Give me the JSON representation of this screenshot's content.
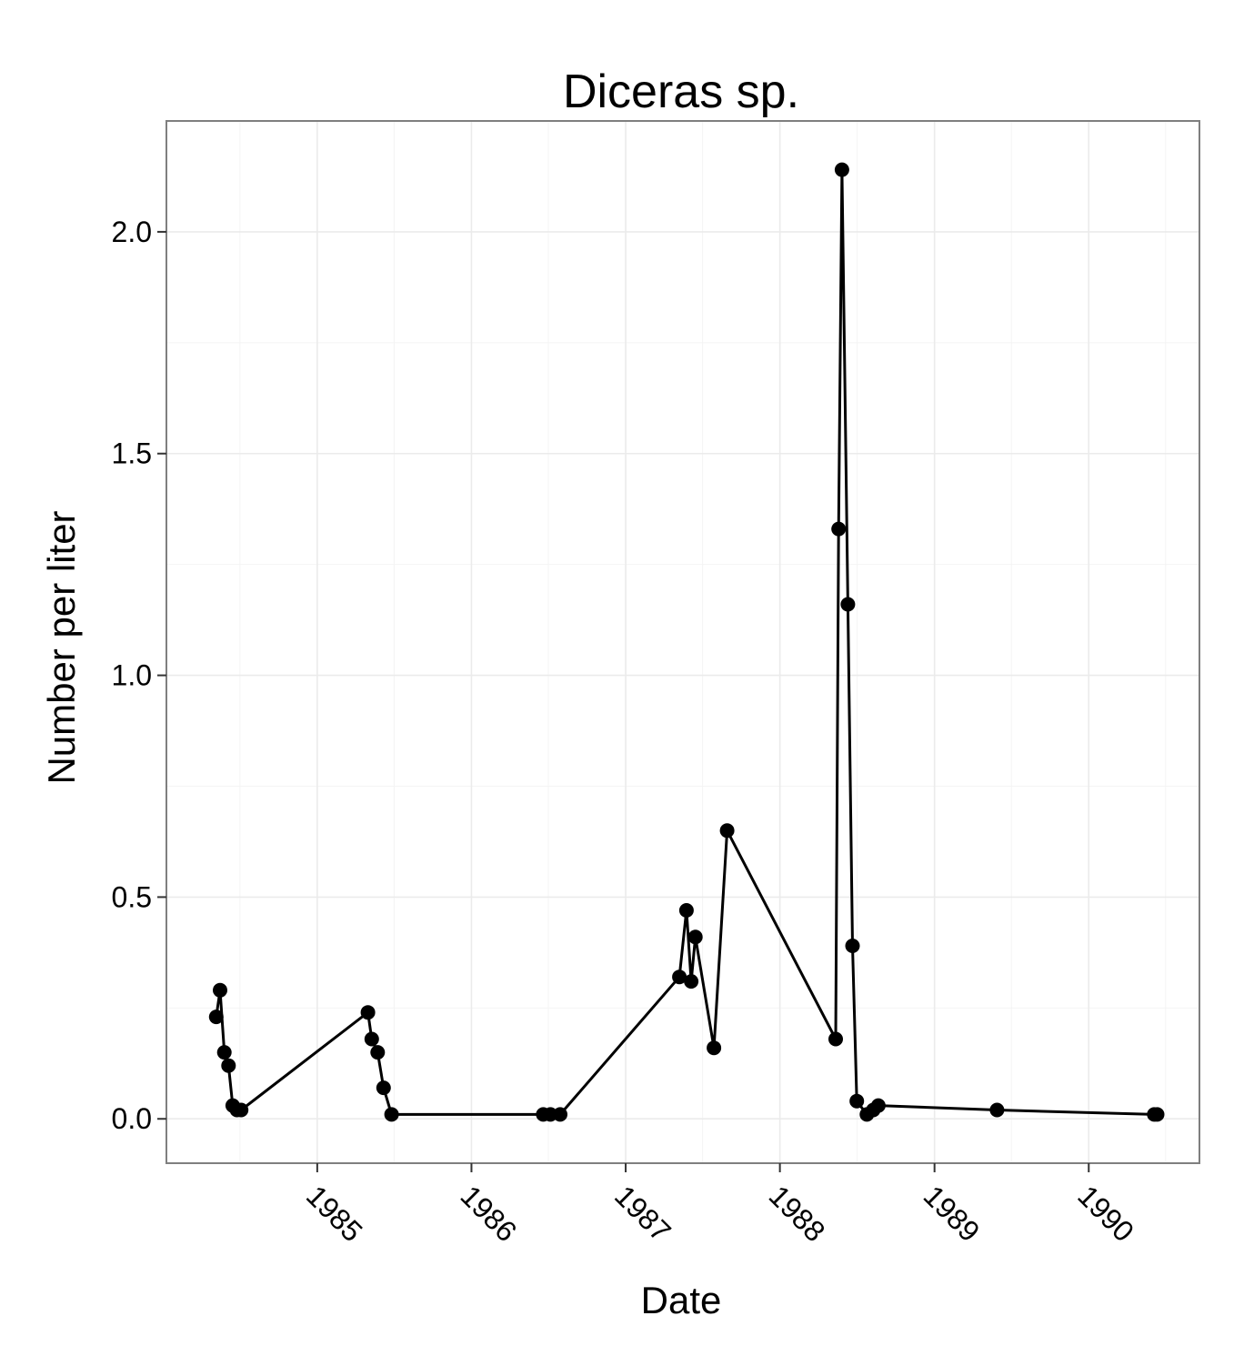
{
  "chart_data": {
    "type": "line",
    "title": "Diceras sp.",
    "xlabel": "Date",
    "ylabel": "Number per liter",
    "x_axis_type": "date",
    "xlim": [
      "1984-01-10",
      "1990-09-20"
    ],
    "ylim": [
      -0.1,
      2.25
    ],
    "x_ticks": [
      "1985-01-01",
      "1986-01-01",
      "1987-01-01",
      "1988-01-01",
      "1989-01-01",
      "1990-01-01"
    ],
    "x_tick_labels": [
      "1985",
      "1986",
      "1987",
      "1988",
      "1989",
      "1990"
    ],
    "y_ticks": [
      0.0,
      0.5,
      1.0,
      1.5,
      2.0
    ],
    "y_tick_labels": [
      "0.0",
      "0.5",
      "1.0",
      "1.5",
      "2.0"
    ],
    "tick_label_rotation_deg": 45,
    "grid": true,
    "legend": "none",
    "series": [
      {
        "color": "#000000",
        "marker": "circle",
        "x": [
          "1984-05-07",
          "1984-05-16",
          "1984-05-26",
          "1984-06-05",
          "1984-06-15",
          "1984-06-25",
          "1984-07-05",
          "1985-05-01",
          "1985-05-10",
          "1985-05-24",
          "1985-06-07",
          "1985-06-26",
          "1986-06-20",
          "1986-07-07",
          "1986-07-30",
          "1987-05-08",
          "1987-05-25",
          "1987-06-05",
          "1987-06-15",
          "1987-07-29",
          "1987-08-29",
          "1988-05-12",
          "1988-05-19",
          "1988-05-27",
          "1988-06-10",
          "1988-06-21",
          "1988-07-01",
          "1988-07-25",
          "1988-08-09",
          "1988-08-21",
          "1989-05-29",
          "1990-06-05",
          "1990-06-12"
        ],
        "y": [
          0.23,
          0.29,
          0.15,
          0.12,
          0.03,
          0.02,
          0.02,
          0.24,
          0.18,
          0.15,
          0.07,
          0.01,
          0.01,
          0.01,
          0.01,
          0.32,
          0.47,
          0.31,
          0.41,
          0.16,
          0.65,
          0.18,
          1.33,
          2.14,
          1.16,
          0.39,
          0.04,
          0.01,
          0.02,
          0.03,
          0.02,
          0.01,
          0.01
        ]
      }
    ]
  }
}
